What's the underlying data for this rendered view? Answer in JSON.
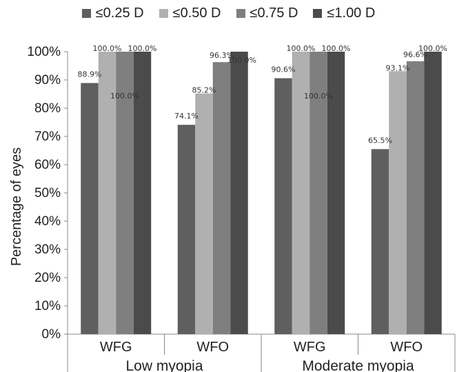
{
  "chart_data": {
    "type": "bar",
    "title": "",
    "xlabel": "",
    "ylabel": "Percentage of eyes",
    "ylim": [
      0,
      100
    ],
    "y_ticks": [
      "0%",
      "10%",
      "20%",
      "30%",
      "40%",
      "50%",
      "60%",
      "70%",
      "80%",
      "90%",
      "100%"
    ],
    "grid": false,
    "legend_position": "top",
    "groups": [
      {
        "label": "Low myopia",
        "categories": [
          "WFG",
          "WFO"
        ]
      },
      {
        "label": "Moderate myopia",
        "categories": [
          "WFG",
          "WFO"
        ]
      }
    ],
    "categories": [
      "WFG",
      "WFO",
      "WFG",
      "WFO"
    ],
    "series": [
      {
        "name": "≤0.25 D",
        "color": "#5f5f5f",
        "values": [
          88.9,
          74.1,
          90.6,
          65.5
        ],
        "labels": [
          "88.9%",
          "74.1%",
          "90.6%",
          "65.5%"
        ]
      },
      {
        "name": "≤0.50 D",
        "color": "#b0b0b0",
        "values": [
          100.0,
          85.2,
          100.0,
          93.1
        ],
        "labels": [
          "100.0%",
          "85.2%",
          "100.0%",
          "93.1%"
        ]
      },
      {
        "name": "≤0.75 D",
        "color": "#7f7f7f",
        "values": [
          100.0,
          96.3,
          100.0,
          96.6
        ],
        "labels": [
          "100.0%",
          "96.3%",
          "100.0%",
          "96.6%"
        ]
      },
      {
        "name": "≤1.00 D",
        "color": "#4b4b4b",
        "values": [
          100.0,
          100.0,
          100.0,
          100.0
        ],
        "labels": [
          "100.0%",
          "100.0%",
          "100.0%",
          "100.0%"
        ]
      }
    ]
  }
}
